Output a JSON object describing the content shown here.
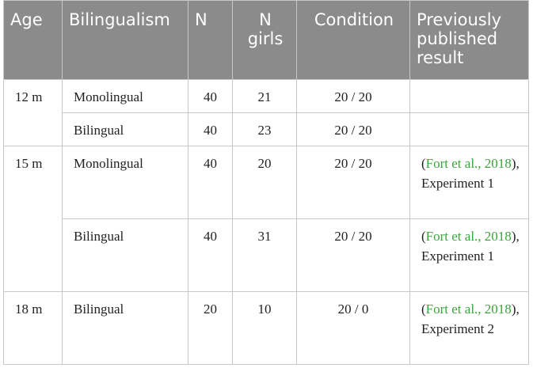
{
  "table": {
    "header": [
      "Age",
      "Bilingualism",
      "N",
      "N girls",
      "Condition",
      "Previously published result"
    ],
    "rows": [
      {
        "age": "12 m",
        "subrows": [
          {
            "bilingualism": "Monolingual",
            "n": 40,
            "n_girls": 21,
            "condition": "20 / 20"
          },
          {
            "bilingualism": "Bilingual",
            "n": 40,
            "n_girls": 23,
            "condition": "20 / 20"
          }
        ]
      },
      {
        "age": "15 m",
        "subrows": [
          {
            "bilingualism": "Monolingual",
            "n": 40,
            "n_girls": 20,
            "condition": "20 / 20",
            "reference": {
              "before": "(",
              "link": "Fort et al., 2018",
              "after": "), Experiment 1"
            }
          },
          {
            "bilingualism": "Bilingual",
            "n": 40,
            "n_girls": 31,
            "condition": "20 / 20",
            "reference": {
              "before": "(",
              "link": "Fort et al., 2018",
              "after": "), Experiment 1"
            }
          }
        ]
      },
      {
        "age": "18 m",
        "subrows": [
          {
            "bilingualism": "Bilingual",
            "n": 20,
            "n_girls": 10,
            "condition": "20 / 0",
            "reference": {
              "before": "(",
              "link": "Fort et al., 2018",
              "after": "), Experiment 2"
            }
          }
        ]
      }
    ]
  }
}
